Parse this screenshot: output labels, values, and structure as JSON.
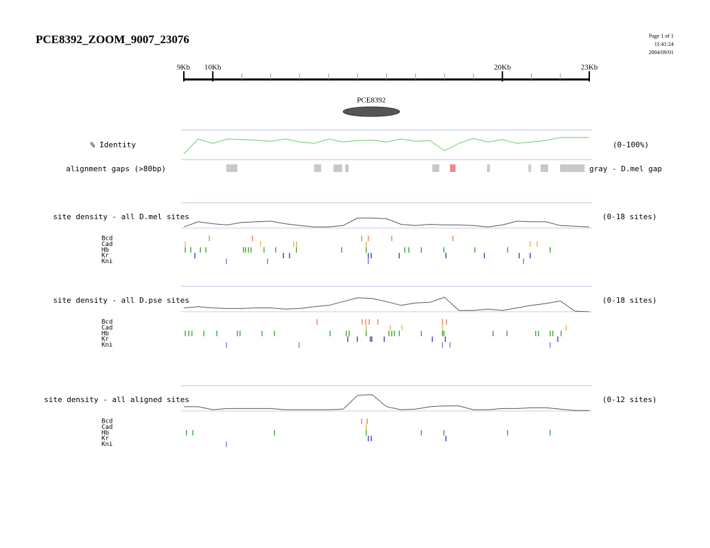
{
  "header": {
    "title": "PCE8392_ZOOM_9007_23076",
    "page_info": [
      "Page 1 of 1",
      "11:41:24",
      "2004/09/01"
    ]
  },
  "ruler": {
    "xlim": [
      9,
      23
    ],
    "xticks": [
      {
        "value": 9,
        "label": "9Kb"
      },
      {
        "value": 10,
        "label": "10Kb"
      },
      {
        "value": 20,
        "label": "20Kb"
      },
      {
        "value": 23,
        "label": "23Kb"
      }
    ]
  },
  "feature": {
    "label": "PCE8392",
    "start": 14.5,
    "end": 16.45
  },
  "positions": [
    9,
    9.5,
    10,
    10.5,
    11,
    11.5,
    12,
    12.5,
    13,
    13.5,
    14,
    14.5,
    15,
    15.5,
    16,
    16.5,
    17,
    17.5,
    18,
    18.5,
    19,
    19.5,
    20,
    20.5,
    21,
    21.5,
    22,
    22.5,
    23
  ],
  "identity": {
    "label": "% Identity",
    "range_label": "(0-100%)",
    "ylim": [
      0,
      100
    ],
    "color": "#66cc66",
    "values": [
      20,
      70,
      55,
      70,
      68,
      66,
      62,
      70,
      60,
      55,
      70,
      60,
      65,
      66,
      60,
      70,
      62,
      65,
      30,
      55,
      72,
      60,
      68,
      55,
      60,
      65,
      75,
      75,
      75
    ]
  },
  "gaps": {
    "label": "alignment gaps (>80bp)",
    "legend": "gray - D.mel gap",
    "intervals": [
      {
        "start": 10.47,
        "end": 10.85,
        "color": "#c8c8c8"
      },
      {
        "start": 13.5,
        "end": 13.74,
        "color": "#c8c8c8"
      },
      {
        "start": 14.17,
        "end": 14.47,
        "color": "#c8c8c8"
      },
      {
        "start": 14.57,
        "end": 14.69,
        "color": "#c8c8c8"
      },
      {
        "start": 17.58,
        "end": 17.82,
        "color": "#c8c8c8"
      },
      {
        "start": 18.19,
        "end": 18.38,
        "color": "#f08888"
      },
      {
        "start": 19.47,
        "end": 19.57,
        "color": "#c8c8c8"
      },
      {
        "start": 20.9,
        "end": 20.99,
        "color": "#c8c8c8"
      },
      {
        "start": 21.32,
        "end": 21.58,
        "color": "#c8c8c8"
      },
      {
        "start": 21.99,
        "end": 22.84,
        "color": "#c8c8c8"
      }
    ]
  },
  "factors": [
    {
      "name": "Bcd",
      "color": "#f07050"
    },
    {
      "name": "Cad",
      "color": "#e0b030"
    },
    {
      "name": "Hb",
      "color": "#20a020"
    },
    {
      "name": "Kr",
      "color": "#2828c0"
    },
    {
      "name": "Kni",
      "color": "#8060d0"
    }
  ],
  "panels": [
    {
      "label": "site density - all D.mel sites",
      "range_label": "(0-18 sites)",
      "ylim": [
        0,
        18
      ],
      "values": [
        1,
        5,
        3.5,
        2.5,
        4.5,
        5,
        5.5,
        3.5,
        2,
        1,
        1,
        2,
        8,
        8,
        7.5,
        3,
        2,
        3,
        2.5,
        2.5,
        2,
        1,
        2.5,
        5.5,
        5,
        5,
        2,
        1.5,
        1
      ],
      "sites": [
        [
          9.88,
          11.37,
          15.14,
          15.37,
          16.18,
          18.29
        ],
        [
          9.05,
          11.65,
          12.79,
          12.89,
          15.3,
          20.96,
          21.2
        ],
        [
          9.05,
          9.24,
          9.57,
          9.76,
          11.06,
          11.13,
          11.23,
          11.32,
          11.77,
          12.17,
          12.89,
          14.45,
          15.3,
          16.63,
          16.77,
          17.2,
          17.98,
          19.05,
          20.18,
          21.65
        ],
        [
          9.38,
          12.44,
          12.65,
          15.37,
          15.47,
          16.44,
          18.05,
          19.38,
          20.58,
          20.96
        ],
        [
          10.47,
          11.89,
          15.37,
          20.73
        ]
      ]
    },
    {
      "label": "site density - all D.pse sites",
      "range_label": "(0-18 sites)",
      "ylim": [
        0,
        18
      ],
      "values": [
        3,
        4,
        3,
        2.5,
        2.5,
        3,
        3,
        2,
        2.5,
        4,
        5,
        8,
        11,
        10.5,
        8,
        5,
        7,
        7.5,
        11.5,
        1,
        1,
        2,
        1,
        3,
        5,
        6.5,
        8.5,
        0.5,
        0
      ],
      "sites": [
        [
          13.6,
          15.16,
          15.28,
          15.4,
          15.7,
          17.93,
          18.07
        ],
        [
          15.3,
          16.13,
          16.53,
          17.93,
          22.2
        ],
        [
          9.05,
          9.17,
          9.28,
          9.69,
          10.14,
          10.85,
          10.94,
          11.7,
          12.13,
          14.05,
          14.61,
          14.71,
          15.3,
          16.08,
          16.18,
          16.27,
          16.44,
          17.2,
          17.93,
          17.98,
          19.68,
          20.16,
          21.15,
          21.25,
          21.65,
          21.74,
          22.03
        ],
        [
          14.66,
          14.99,
          15.44,
          15.49,
          15.92,
          17.58,
          18.03,
          21.91
        ],
        [
          10.47,
          12.98,
          17.93,
          18.19,
          21.65
        ]
      ]
    },
    {
      "label": "site density - all aligned sites",
      "range_label": "(0-12 sites)",
      "ylim": [
        0,
        12
      ],
      "values": [
        2.3,
        2.3,
        0.7,
        1.3,
        1.3,
        1.3,
        1.3,
        0.7,
        0.7,
        0.7,
        0.7,
        1,
        8.3,
        8.7,
        2.3,
        0.7,
        1,
        2.3,
        2.7,
        2.7,
        0.7,
        0.7,
        1.3,
        1.3,
        1.7,
        1.7,
        1,
        0.3,
        0.3
      ],
      "sites": [
        [
          15.14,
          15.33
        ],
        [
          15.3
        ],
        [
          9.09,
          9.31,
          12.13,
          15.3,
          17.2,
          17.98,
          20.18,
          21.65
        ],
        [
          15.37,
          15.47,
          18.05
        ],
        [
          10.47
        ]
      ]
    }
  ]
}
